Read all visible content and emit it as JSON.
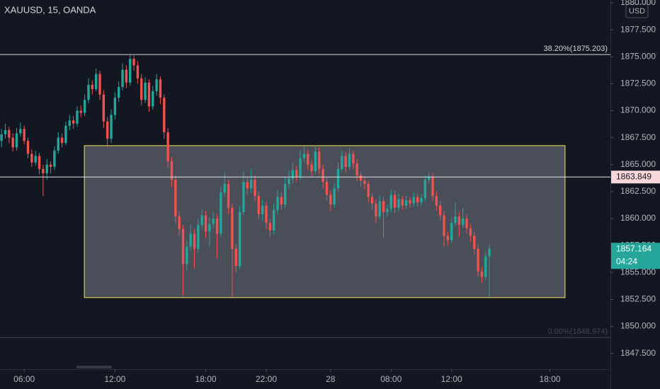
{
  "chart_data": {
    "type": "candlestick",
    "title": "XAUUSD, 15, OANDA",
    "currency": "USD",
    "up_color": "#26a69a",
    "down_color": "#ef5350",
    "xlim": [
      -0.4,
      161
    ],
    "xticks": [
      {
        "value": 6,
        "label": "06:00"
      },
      {
        "value": 30,
        "label": "12:00"
      },
      {
        "value": 54,
        "label": "18:00"
      },
      {
        "value": 70,
        "label": "22:00"
      },
      {
        "value": 87,
        "label": "28"
      },
      {
        "value": 103,
        "label": "08:00"
      },
      {
        "value": 119,
        "label": "12:00"
      },
      {
        "value": 145,
        "label": "18:00"
      }
    ],
    "ylim": [
      1844.2,
      1880.26
    ],
    "yticks": [
      {
        "value": 1847.5,
        "label": "1847.500"
      },
      {
        "value": 1850,
        "label": "1850.000"
      },
      {
        "value": 1852.5,
        "label": "1852.500"
      },
      {
        "value": 1855,
        "label": "1855.000"
      },
      {
        "value": 1857.5,
        "label": "1857.500"
      },
      {
        "value": 1860,
        "label": "1860.000"
      },
      {
        "value": 1862.5,
        "label": "1862.500"
      },
      {
        "value": 1865,
        "label": "1865.000"
      },
      {
        "value": 1867.5,
        "label": "1867.500"
      },
      {
        "value": 1870,
        "label": "1870.000"
      },
      {
        "value": 1872.5,
        "label": "1872.500"
      },
      {
        "value": 1875,
        "label": "1875.000"
      },
      {
        "value": 1877.5,
        "label": "1877.500"
      },
      {
        "value": 1880,
        "label": "1880.000"
      }
    ],
    "levels": [
      {
        "value": 1875.203,
        "label": "38.20%(1875.203)",
        "color": "#d1d4dc"
      },
      {
        "value": 1848.974,
        "label": "0.00%(1848.974)",
        "color": "#434651"
      }
    ],
    "price_line": 1863.849,
    "last_price": 1857.164,
    "countdown": "04:24",
    "rectangle": {
      "x": [
        21.9,
        149
      ],
      "y": [
        1852.67,
        1866.76
      ],
      "color": "#f5e356"
    },
    "ohlc": [
      [
        1867.2,
        1868.3,
        1866.6,
        1867.8
      ],
      [
        1867.8,
        1868.8,
        1867.4,
        1868.2
      ],
      [
        1868.2,
        1868.5,
        1867.0,
        1867.5
      ],
      [
        1867.5,
        1867.9,
        1866.2,
        1866.6
      ],
      [
        1866.6,
        1868.4,
        1866.3,
        1867.9
      ],
      [
        1867.9,
        1868.9,
        1867.6,
        1868.3
      ],
      [
        1868.3,
        1868.6,
        1866.9,
        1867.2
      ],
      [
        1867.2,
        1867.5,
        1865.6,
        1866.0
      ],
      [
        1866.0,
        1866.4,
        1864.8,
        1865.2
      ],
      [
        1865.2,
        1866.3,
        1864.9,
        1865.8
      ],
      [
        1865.8,
        1866.1,
        1864.1,
        1864.6
      ],
      [
        1864.6,
        1865.0,
        1862.1,
        1864.2
      ],
      [
        1864.2,
        1865.5,
        1863.6,
        1865.0
      ],
      [
        1865.0,
        1865.3,
        1864.2,
        1864.8
      ],
      [
        1864.8,
        1866.7,
        1864.5,
        1866.3
      ],
      [
        1866.3,
        1868.0,
        1866.0,
        1867.5
      ],
      [
        1867.5,
        1867.9,
        1866.6,
        1867.0
      ],
      [
        1867.0,
        1869.0,
        1866.8,
        1868.6
      ],
      [
        1868.6,
        1869.6,
        1868.2,
        1869.1
      ],
      [
        1869.1,
        1869.5,
        1868.3,
        1868.8
      ],
      [
        1868.8,
        1870.4,
        1868.5,
        1870.0
      ],
      [
        1870.0,
        1870.5,
        1869.4,
        1869.8
      ],
      [
        1869.8,
        1871.5,
        1869.5,
        1871.0
      ],
      [
        1871.0,
        1873.0,
        1870.7,
        1872.4
      ],
      [
        1872.4,
        1872.8,
        1871.5,
        1872.0
      ],
      [
        1872.0,
        1873.9,
        1871.8,
        1873.4
      ],
      [
        1873.4,
        1873.7,
        1871.0,
        1871.5
      ],
      [
        1871.5,
        1871.9,
        1868.4,
        1869.0
      ],
      [
        1869.0,
        1869.4,
        1866.6,
        1867.4
      ],
      [
        1867.4,
        1870.1,
        1867.0,
        1869.6
      ],
      [
        1869.6,
        1871.7,
        1869.2,
        1871.2
      ],
      [
        1871.2,
        1872.7,
        1870.8,
        1872.2
      ],
      [
        1872.2,
        1874.4,
        1871.9,
        1873.8
      ],
      [
        1873.8,
        1874.2,
        1872.1,
        1872.6
      ],
      [
        1872.6,
        1875.3,
        1872.3,
        1874.8
      ],
      [
        1874.8,
        1875.1,
        1873.7,
        1874.2
      ],
      [
        1874.2,
        1874.6,
        1872.5,
        1873.0
      ],
      [
        1873.0,
        1873.4,
        1870.5,
        1871.0
      ],
      [
        1871.0,
        1873.1,
        1870.7,
        1872.6
      ],
      [
        1872.6,
        1872.9,
        1869.9,
        1870.4
      ],
      [
        1870.4,
        1872.3,
        1870.1,
        1871.8
      ],
      [
        1871.8,
        1873.4,
        1871.4,
        1872.9
      ],
      [
        1872.9,
        1873.2,
        1870.6,
        1871.2
      ],
      [
        1871.2,
        1871.5,
        1867.4,
        1868.0
      ],
      [
        1868.0,
        1868.4,
        1864.7,
        1865.3
      ],
      [
        1865.3,
        1865.7,
        1862.9,
        1863.6
      ],
      [
        1863.6,
        1864.0,
        1859.6,
        1860.2
      ],
      [
        1860.2,
        1860.7,
        1858.4,
        1859.0
      ],
      [
        1859.0,
        1859.4,
        1852.9,
        1855.8
      ],
      [
        1855.8,
        1858.0,
        1855.2,
        1857.4
      ],
      [
        1857.4,
        1859.4,
        1857.0,
        1858.6
      ],
      [
        1858.6,
        1859.0,
        1855.4,
        1857.2
      ],
      [
        1857.2,
        1860.0,
        1856.8,
        1859.4
      ],
      [
        1859.4,
        1860.9,
        1859.0,
        1860.3
      ],
      [
        1860.3,
        1860.7,
        1858.2,
        1858.8
      ],
      [
        1858.8,
        1860.1,
        1857.4,
        1859.5
      ],
      [
        1859.5,
        1860.6,
        1859.1,
        1860.0
      ],
      [
        1860.0,
        1860.4,
        1856.3,
        1858.6
      ],
      [
        1858.6,
        1863.0,
        1858.3,
        1862.4
      ],
      [
        1862.4,
        1864.3,
        1862.0,
        1863.2
      ],
      [
        1863.2,
        1863.6,
        1860.4,
        1861.0
      ],
      [
        1861.0,
        1861.4,
        1852.7,
        1857.2
      ],
      [
        1857.2,
        1857.6,
        1855.0,
        1855.6
      ],
      [
        1855.6,
        1861.2,
        1855.3,
        1860.6
      ],
      [
        1860.6,
        1864.4,
        1860.3,
        1863.4
      ],
      [
        1863.4,
        1863.8,
        1862.2,
        1862.8
      ],
      [
        1862.8,
        1864.6,
        1862.4,
        1863.6
      ],
      [
        1863.6,
        1864.0,
        1861.6,
        1862.1
      ],
      [
        1862.1,
        1862.5,
        1859.9,
        1860.4
      ],
      [
        1860.4,
        1861.8,
        1859.8,
        1861.2
      ],
      [
        1861.2,
        1861.6,
        1859.0,
        1859.6
      ],
      [
        1859.6,
        1860.0,
        1858.3,
        1858.9
      ],
      [
        1858.9,
        1861.4,
        1858.5,
        1860.8
      ],
      [
        1860.8,
        1862.6,
        1860.4,
        1862.0
      ],
      [
        1862.0,
        1862.4,
        1860.8,
        1861.3
      ],
      [
        1861.3,
        1863.8,
        1861.0,
        1863.2
      ],
      [
        1863.2,
        1864.4,
        1862.8,
        1863.7
      ],
      [
        1863.7,
        1865.2,
        1863.3,
        1864.5
      ],
      [
        1864.5,
        1864.9,
        1863.4,
        1863.9
      ],
      [
        1863.9,
        1866.3,
        1863.6,
        1865.6
      ],
      [
        1865.6,
        1866.7,
        1865.2,
        1866.0
      ],
      [
        1866.0,
        1866.4,
        1864.5,
        1865.0
      ],
      [
        1865.0,
        1865.4,
        1863.9,
        1864.4
      ],
      [
        1864.4,
        1866.8,
        1864.1,
        1866.2
      ],
      [
        1866.2,
        1866.6,
        1864.1,
        1864.6
      ],
      [
        1864.6,
        1865.0,
        1862.8,
        1863.4
      ],
      [
        1863.4,
        1863.8,
        1861.7,
        1862.2
      ],
      [
        1862.2,
        1862.6,
        1860.7,
        1861.3
      ],
      [
        1861.3,
        1863.3,
        1861.0,
        1862.8
      ],
      [
        1862.8,
        1865.2,
        1862.5,
        1864.6
      ],
      [
        1864.6,
        1866.3,
        1864.3,
        1865.8
      ],
      [
        1865.8,
        1866.2,
        1864.3,
        1864.8
      ],
      [
        1864.8,
        1866.5,
        1864.5,
        1866.0
      ],
      [
        1866.0,
        1866.3,
        1864.6,
        1865.1
      ],
      [
        1865.1,
        1865.5,
        1863.5,
        1864.0
      ],
      [
        1864.0,
        1864.3,
        1863.0,
        1863.5
      ],
      [
        1863.5,
        1863.8,
        1862.7,
        1863.2
      ],
      [
        1863.2,
        1863.5,
        1861.5,
        1862.0
      ],
      [
        1862.0,
        1862.3,
        1860.8,
        1861.4
      ],
      [
        1861.4,
        1861.8,
        1859.6,
        1860.2
      ],
      [
        1860.2,
        1862.1,
        1859.9,
        1861.6
      ],
      [
        1861.6,
        1862.0,
        1858.2,
        1860.6
      ],
      [
        1860.6,
        1861.3,
        1860.2,
        1860.9
      ],
      [
        1860.9,
        1862.7,
        1860.6,
        1862.2
      ],
      [
        1862.2,
        1862.6,
        1860.5,
        1861.0
      ],
      [
        1861.0,
        1862.3,
        1860.7,
        1861.8
      ],
      [
        1861.8,
        1862.1,
        1860.8,
        1861.2
      ],
      [
        1861.2,
        1862.1,
        1860.9,
        1861.7
      ],
      [
        1861.7,
        1862.0,
        1861.0,
        1861.4
      ],
      [
        1861.4,
        1862.4,
        1861.1,
        1862.0
      ],
      [
        1862.0,
        1862.3,
        1861.1,
        1861.5
      ],
      [
        1861.5,
        1862.3,
        1861.2,
        1861.9
      ],
      [
        1861.9,
        1864.0,
        1861.6,
        1863.6
      ],
      [
        1863.6,
        1864.3,
        1863.2,
        1863.9
      ],
      [
        1863.9,
        1864.2,
        1861.7,
        1862.1
      ],
      [
        1862.1,
        1862.5,
        1860.7,
        1861.2
      ],
      [
        1861.2,
        1861.6,
        1859.8,
        1860.3
      ],
      [
        1860.3,
        1860.7,
        1857.4,
        1858.4
      ],
      [
        1858.4,
        1858.8,
        1857.5,
        1858.0
      ],
      [
        1858.0,
        1860.1,
        1857.7,
        1859.6
      ],
      [
        1859.6,
        1861.5,
        1859.3,
        1860.2
      ],
      [
        1860.2,
        1860.6,
        1858.3,
        1859.4
      ],
      [
        1859.4,
        1861.0,
        1859.1,
        1860.0
      ],
      [
        1860.0,
        1860.4,
        1858.6,
        1859.1
      ],
      [
        1859.1,
        1859.5,
        1857.8,
        1858.4
      ],
      [
        1858.4,
        1858.8,
        1856.7,
        1857.2
      ],
      [
        1857.2,
        1857.6,
        1854.6,
        1855.1
      ],
      [
        1855.1,
        1855.5,
        1854.0,
        1854.6
      ],
      [
        1854.6,
        1856.9,
        1854.3,
        1856.5
      ],
      [
        1856.5,
        1857.6,
        1852.8,
        1857.2
      ]
    ]
  }
}
